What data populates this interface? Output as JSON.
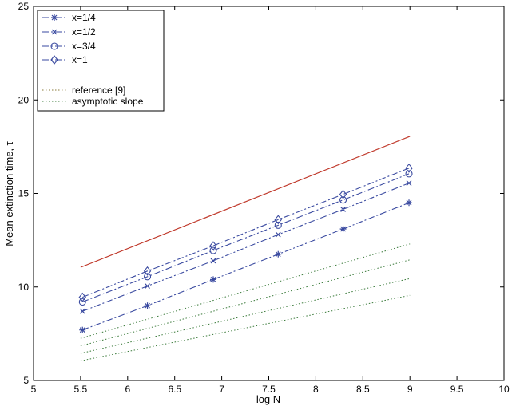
{
  "chart_data": {
    "type": "line",
    "xlabel": "log N",
    "ylabel": "Mean extinction time,  τ",
    "xlim": [
      5,
      10
    ],
    "ylim": [
      5,
      25
    ],
    "xticks": [
      "5",
      "5.5",
      "6",
      "6.5",
      "7",
      "7.5",
      "8",
      "8.5",
      "9",
      "9.5",
      "10"
    ],
    "yticks": [
      "5",
      "10",
      "15",
      "20",
      "25"
    ],
    "grid": false,
    "legend_position": "top-left",
    "series": [
      {
        "name": "x=1/4",
        "marker": "asterisk",
        "style": "dash-dot",
        "color": "#3a4aa0",
        "x": [
          5.52,
          6.21,
          6.91,
          7.6,
          8.29,
          8.99
        ],
        "y": [
          7.7,
          9.0,
          10.4,
          11.75,
          13.1,
          14.5
        ]
      },
      {
        "name": "x=1/2",
        "marker": "x",
        "style": "dash-dot",
        "color": "#3a4aa0",
        "x": [
          5.52,
          6.21,
          6.91,
          7.6,
          8.29,
          8.99
        ],
        "y": [
          8.7,
          10.05,
          11.4,
          12.8,
          14.15,
          15.55
        ]
      },
      {
        "name": "x=3/4",
        "marker": "circle",
        "style": "dash-dot",
        "color": "#3a4aa0",
        "x": [
          5.52,
          6.21,
          6.91,
          7.6,
          8.29,
          8.99
        ],
        "y": [
          9.2,
          10.55,
          11.95,
          13.3,
          14.65,
          16.05
        ]
      },
      {
        "name": "x=1",
        "marker": "diamond",
        "style": "dash-dot",
        "color": "#3a4aa0",
        "x": [
          5.52,
          6.21,
          6.91,
          7.6,
          8.29,
          8.99
        ],
        "y": [
          9.45,
          10.85,
          12.2,
          13.6,
          14.95,
          16.35
        ]
      },
      {
        "name": "reference [9]",
        "marker": "none",
        "style": "solid",
        "color": "#c0392b",
        "x": [
          5.5,
          9.0
        ],
        "y": [
          11.05,
          18.05
        ]
      }
    ],
    "asymptotic_lines": {
      "name": "asymptotic slope",
      "style": "dotted",
      "color": "#3a7a3a",
      "lines": [
        {
          "x": [
            5.5,
            9.0
          ],
          "y": [
            6.05,
            9.55
          ]
        },
        {
          "x": [
            5.5,
            9.0
          ],
          "y": [
            6.45,
            10.45
          ]
        },
        {
          "x": [
            5.5,
            9.0
          ],
          "y": [
            6.85,
            11.45
          ]
        },
        {
          "x": [
            5.5,
            9.0
          ],
          "y": [
            7.25,
            12.3
          ]
        }
      ]
    }
  }
}
